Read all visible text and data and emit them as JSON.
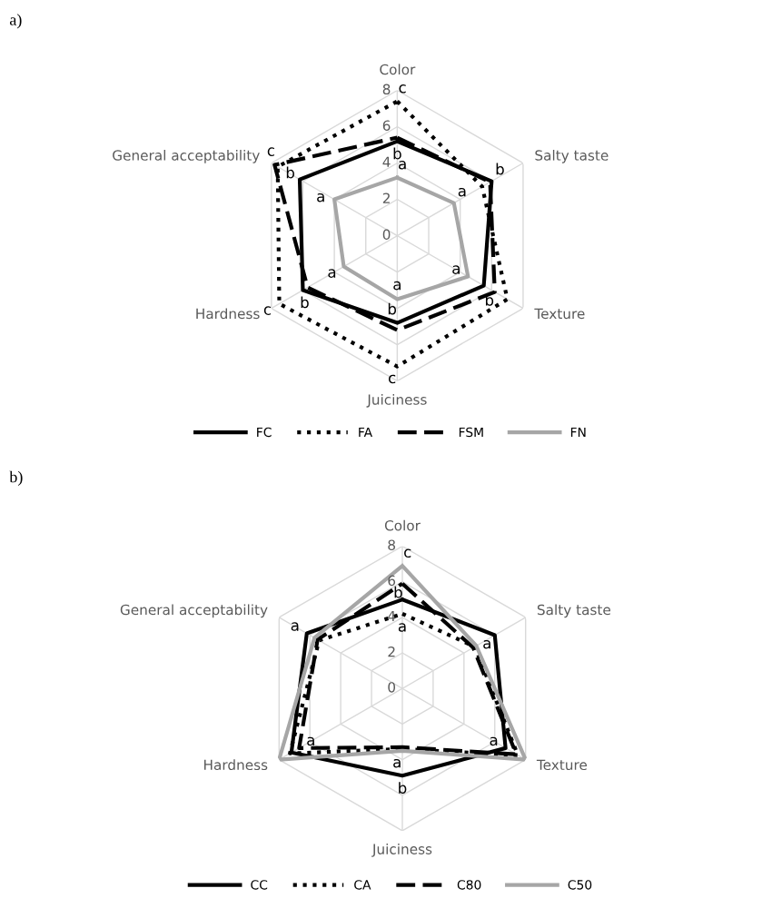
{
  "chart_data": [
    {
      "type": "radar",
      "title": "a)",
      "categories": [
        "Color",
        "Salty taste",
        "Texture",
        "Juiciness",
        "Hardness",
        "General acceptability"
      ],
      "ylim": [
        0,
        8
      ],
      "yticks": [
        0,
        2,
        4,
        6,
        8
      ],
      "grid": true,
      "legend": "bottom",
      "marker": "none",
      "series": [
        {
          "name": "FC",
          "color": "#000000",
          "line_style": "solid",
          "values": [
            5.2,
            6.0,
            5.5,
            4.8,
            6.0,
            6.2
          ],
          "value_labels": [
            "b",
            "b",
            null,
            "b",
            "b",
            "b"
          ]
        },
        {
          "name": "FA",
          "color": "#000000",
          "line_style": "dotted",
          "values": [
            7.4,
            5.4,
            7.0,
            7.2,
            7.5,
            7.6
          ],
          "value_labels": [
            "c",
            null,
            null,
            "c",
            "c",
            null
          ]
        },
        {
          "name": "FSM",
          "color": "#000000",
          "line_style": "dashed",
          "values": [
            5.4,
            5.9,
            6.2,
            5.2,
            5.7,
            7.8
          ],
          "value_labels": [
            null,
            null,
            "b",
            null,
            null,
            "c"
          ]
        },
        {
          "name": "FN",
          "color": "#a6a6a6",
          "line_style": "solid",
          "values": [
            3.2,
            3.6,
            4.5,
            3.5,
            3.4,
            4.0
          ],
          "value_labels": [
            "a",
            "a",
            "a",
            "a",
            "a",
            "a"
          ]
        }
      ]
    },
    {
      "type": "radar",
      "title": "b)",
      "categories": [
        "Color",
        "Salty taste",
        "Texture",
        "Juiciness",
        "Hardness",
        "General acceptability"
      ],
      "ylim": [
        0,
        8
      ],
      "yticks": [
        0,
        2,
        4,
        6,
        8
      ],
      "grid": true,
      "legend": "bottom",
      "marker": "none",
      "series": [
        {
          "name": "CC",
          "color": "#000000",
          "line_style": "solid",
          "values": [
            5.0,
            6.0,
            6.7,
            4.9,
            7.2,
            6.2
          ],
          "value_labels": [
            null,
            null,
            "a",
            "b",
            null,
            "a"
          ]
        },
        {
          "name": "CA",
          "color": "#000000",
          "line_style": "dotted",
          "values": [
            4.2,
            4.7,
            7.5,
            3.4,
            7.3,
            5.4
          ],
          "value_labels": [
            "a",
            null,
            null,
            null,
            null,
            null
          ]
        },
        {
          "name": "C80",
          "color": "#000000",
          "line_style": "dashed",
          "values": [
            5.9,
            4.6,
            7.4,
            3.3,
            6.7,
            5.5
          ],
          "value_labels": [
            "b",
            null,
            null,
            null,
            "a",
            null
          ]
        },
        {
          "name": "C50",
          "color": "#a6a6a6",
          "line_style": "solid",
          "values": [
            6.9,
            4.8,
            8.0,
            3.5,
            8.0,
            5.7
          ],
          "value_labels": [
            "c",
            "a",
            null,
            "a",
            null,
            null
          ]
        }
      ]
    }
  ]
}
